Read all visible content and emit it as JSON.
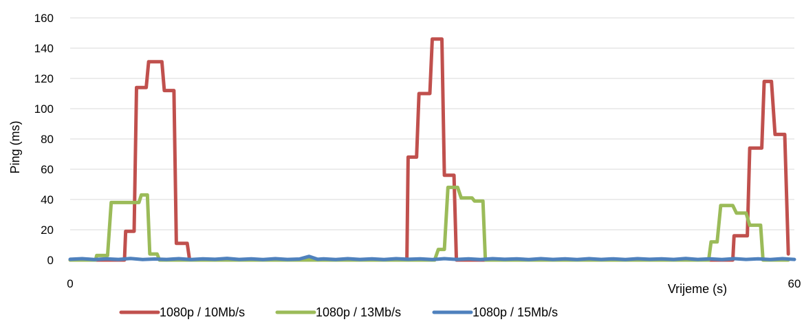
{
  "chart_data": {
    "type": "line",
    "title": "",
    "xlabel": "Vrijeme (s)",
    "ylabel": "Ping (ms)",
    "xlim": [
      0,
      60
    ],
    "ylim": [
      0,
      160
    ],
    "x_ticks": [
      "0",
      "60"
    ],
    "y_ticks": [
      "0",
      "20",
      "40",
      "60",
      "80",
      "100",
      "120",
      "140",
      "160"
    ],
    "grid": true,
    "legend_position": "bottom",
    "series": [
      {
        "name": "1080p / 10Mb/s",
        "color": "#c0504d",
        "points": [
          [
            0,
            0
          ],
          [
            4.5,
            0
          ],
          [
            4.6,
            19
          ],
          [
            5.3,
            19
          ],
          [
            5.5,
            114
          ],
          [
            6.3,
            114
          ],
          [
            6.5,
            131
          ],
          [
            7.6,
            131
          ],
          [
            7.8,
            112
          ],
          [
            8.6,
            112
          ],
          [
            8.8,
            11
          ],
          [
            9.7,
            11
          ],
          [
            9.9,
            0
          ],
          [
            27.9,
            0
          ],
          [
            28.0,
            68
          ],
          [
            28.7,
            68
          ],
          [
            28.9,
            110
          ],
          [
            29.8,
            110
          ],
          [
            30.0,
            146
          ],
          [
            30.8,
            146
          ],
          [
            31.0,
            56
          ],
          [
            31.8,
            56
          ],
          [
            32.0,
            0
          ],
          [
            54.9,
            0
          ],
          [
            55.0,
            16
          ],
          [
            56.1,
            16
          ],
          [
            56.3,
            74
          ],
          [
            57.3,
            74
          ],
          [
            57.5,
            118
          ],
          [
            58.1,
            118
          ],
          [
            58.4,
            83
          ],
          [
            59.2,
            83
          ],
          [
            59.5,
            4
          ]
        ]
      },
      {
        "name": "1080p / 13Mb/s",
        "color": "#9bbb59",
        "points": [
          [
            0,
            0
          ],
          [
            2.1,
            0
          ],
          [
            2.2,
            3
          ],
          [
            3.1,
            3
          ],
          [
            3.4,
            38
          ],
          [
            5.7,
            38
          ],
          [
            5.9,
            43
          ],
          [
            6.4,
            43
          ],
          [
            6.6,
            4
          ],
          [
            7.2,
            4
          ],
          [
            7.4,
            0
          ],
          [
            30.2,
            0
          ],
          [
            30.5,
            7
          ],
          [
            31.0,
            7
          ],
          [
            31.3,
            48
          ],
          [
            32.1,
            48
          ],
          [
            32.4,
            41
          ],
          [
            33.3,
            41
          ],
          [
            33.5,
            39
          ],
          [
            34.2,
            39
          ],
          [
            34.4,
            0
          ],
          [
            52.9,
            0
          ],
          [
            53.1,
            12
          ],
          [
            53.6,
            12
          ],
          [
            53.9,
            36
          ],
          [
            54.9,
            36
          ],
          [
            55.2,
            31
          ],
          [
            56.0,
            31
          ],
          [
            56.3,
            23
          ],
          [
            57.2,
            23
          ],
          [
            57.4,
            0
          ],
          [
            59.5,
            0
          ]
        ]
      },
      {
        "name": "1080p / 15Mb/s",
        "color": "#4f81bd",
        "points": [
          [
            0,
            0.5
          ],
          [
            1,
            0.9
          ],
          [
            2,
            0.3
          ],
          [
            3,
            0.8
          ],
          [
            4,
            0.4
          ],
          [
            5,
            1.0
          ],
          [
            6,
            0.3
          ],
          [
            7,
            0.7
          ],
          [
            8,
            0.4
          ],
          [
            9,
            0.9
          ],
          [
            10,
            0.3
          ],
          [
            11,
            0.8
          ],
          [
            12,
            0.5
          ],
          [
            13,
            1.1
          ],
          [
            14,
            0.4
          ],
          [
            15,
            0.8
          ],
          [
            16,
            0.3
          ],
          [
            17,
            0.9
          ],
          [
            18,
            0.4
          ],
          [
            19,
            0.7
          ],
          [
            19.8,
            2.4
          ],
          [
            20.5,
            0.5
          ],
          [
            21,
            0.8
          ],
          [
            22,
            0.3
          ],
          [
            23,
            0.9
          ],
          [
            24,
            0.4
          ],
          [
            25,
            0.8
          ],
          [
            26,
            0.3
          ],
          [
            27,
            0.9
          ],
          [
            28,
            0.5
          ],
          [
            29,
            0.8
          ],
          [
            30,
            0.3
          ],
          [
            31,
            0.9
          ],
          [
            32,
            0.4
          ],
          [
            33,
            0.8
          ],
          [
            34,
            0.3
          ],
          [
            35,
            0.9
          ],
          [
            36,
            0.5
          ],
          [
            37,
            0.8
          ],
          [
            38,
            0.3
          ],
          [
            39,
            0.9
          ],
          [
            40,
            0.4
          ],
          [
            41,
            0.8
          ],
          [
            42,
            0.3
          ],
          [
            43,
            0.9
          ],
          [
            44,
            0.4
          ],
          [
            45,
            0.8
          ],
          [
            46,
            0.3
          ],
          [
            47,
            0.9
          ],
          [
            48,
            0.5
          ],
          [
            49,
            0.8
          ],
          [
            50,
            0.4
          ],
          [
            51,
            1.0
          ],
          [
            52,
            0.4
          ],
          [
            53,
            0.8
          ],
          [
            54,
            0.3
          ],
          [
            55,
            0.9
          ],
          [
            56,
            0.4
          ],
          [
            57,
            0.8
          ],
          [
            58,
            0.3
          ],
          [
            59,
            0.9
          ],
          [
            60,
            0.4
          ]
        ]
      }
    ]
  }
}
